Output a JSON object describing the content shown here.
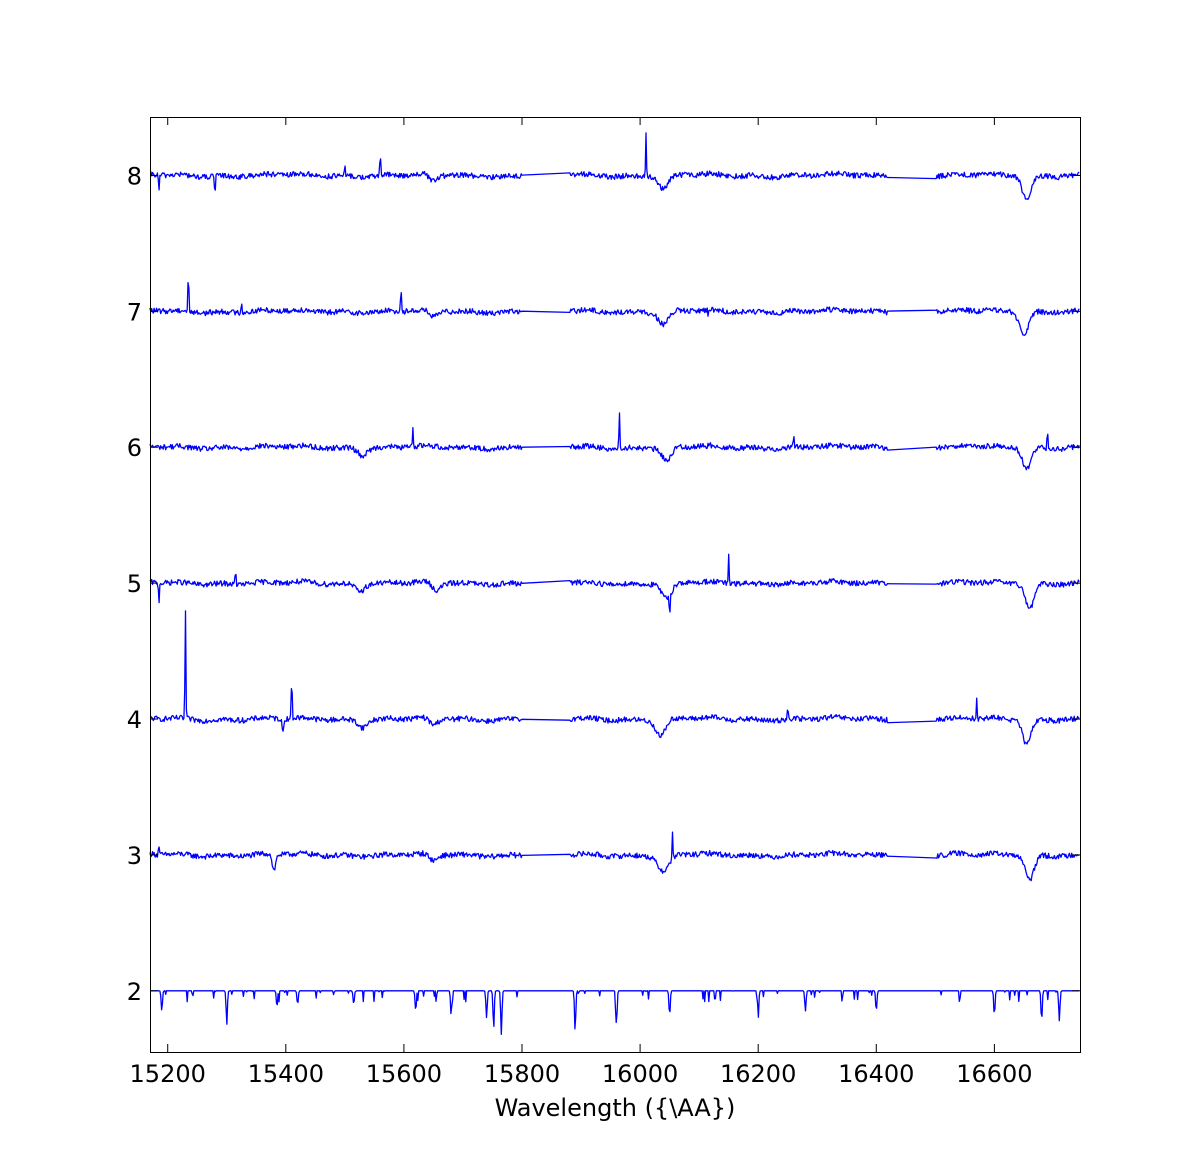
{
  "chart_data": {
    "type": "line",
    "title": "",
    "xlabel": "Wavelength ({\\AA})",
    "ylabel": "",
    "xlim": [
      15170,
      16745
    ],
    "ylim": [
      1.55,
      8.43
    ],
    "xticks": [
      15200,
      15400,
      15600,
      15800,
      16000,
      16200,
      16400,
      16600
    ],
    "yticks": [
      2,
      3,
      4,
      5,
      6,
      7,
      8
    ],
    "grid": false,
    "legend": "none",
    "line_color": "#0000ff",
    "gaps": [
      [
        15800,
        15880
      ],
      [
        16420,
        16500
      ]
    ],
    "series": [
      {
        "offset": 2,
        "features": [
          {
            "x": 15190,
            "depth": 0.15
          },
          {
            "x": 15300,
            "depth": 0.25
          },
          {
            "x": 15385,
            "depth": 0.12
          },
          {
            "x": 15420,
            "depth": 0.1
          },
          {
            "x": 15515,
            "depth": 0.1
          },
          {
            "x": 15620,
            "depth": 0.15
          },
          {
            "x": 15680,
            "depth": 0.18
          },
          {
            "x": 15740,
            "depth": 0.2
          },
          {
            "x": 15752,
            "depth": 0.28
          },
          {
            "x": 15765,
            "depth": 0.32
          },
          {
            "x": 15890,
            "depth": 0.3
          },
          {
            "x": 15960,
            "depth": 0.25
          },
          {
            "x": 16050,
            "depth": 0.18
          },
          {
            "x": 16200,
            "depth": 0.15
          },
          {
            "x": 16280,
            "depth": 0.15
          },
          {
            "x": 16400,
            "depth": 0.15
          },
          {
            "x": 16600,
            "depth": 0.18
          },
          {
            "x": 16680,
            "depth": 0.22
          },
          {
            "x": 16710,
            "depth": 0.22
          }
        ]
      },
      {
        "offset": 3,
        "features": [
          {
            "x": 15380,
            "depth": 0.12,
            "width": 4
          },
          {
            "x": 15650,
            "depth": 0.05,
            "width": 10
          },
          {
            "x": 16040,
            "depth": 0.12,
            "width": 14
          },
          {
            "x": 16055,
            "depth": -0.2,
            "width": 1
          },
          {
            "x": 16660,
            "depth": 0.18,
            "width": 10
          },
          {
            "x": 15185,
            "depth": -0.08,
            "width": 1
          }
        ]
      },
      {
        "offset": 4,
        "features": [
          {
            "x": 15230,
            "depth": -0.82,
            "width": 1
          },
          {
            "x": 15410,
            "depth": -0.32,
            "width": 1
          },
          {
            "x": 15395,
            "depth": 0.1,
            "width": 2
          },
          {
            "x": 15530,
            "depth": 0.05,
            "width": 10
          },
          {
            "x": 15650,
            "depth": 0.05,
            "width": 10
          },
          {
            "x": 16035,
            "depth": 0.12,
            "width": 12
          },
          {
            "x": 16250,
            "depth": -0.12,
            "width": 1
          },
          {
            "x": 16570,
            "depth": -0.14,
            "width": 1
          },
          {
            "x": 16655,
            "depth": 0.18,
            "width": 10
          }
        ]
      },
      {
        "offset": 5,
        "features": [
          {
            "x": 15185,
            "depth": 0.15,
            "width": 1
          },
          {
            "x": 15315,
            "depth": -0.1,
            "width": 1
          },
          {
            "x": 15525,
            "depth": 0.05,
            "width": 10
          },
          {
            "x": 15655,
            "depth": 0.06,
            "width": 10
          },
          {
            "x": 16045,
            "depth": 0.12,
            "width": 12
          },
          {
            "x": 16050,
            "depth": 0.15,
            "width": 1
          },
          {
            "x": 16150,
            "depth": -0.2,
            "width": 1
          },
          {
            "x": 16660,
            "depth": 0.18,
            "width": 10
          }
        ]
      },
      {
        "offset": 6,
        "features": [
          {
            "x": 15615,
            "depth": -0.15,
            "width": 1
          },
          {
            "x": 15965,
            "depth": -0.25,
            "width": 1
          },
          {
            "x": 15530,
            "depth": 0.05,
            "width": 10
          },
          {
            "x": 16045,
            "depth": 0.1,
            "width": 12
          },
          {
            "x": 16260,
            "depth": -0.1,
            "width": 1
          },
          {
            "x": 16655,
            "depth": 0.15,
            "width": 10
          },
          {
            "x": 16690,
            "depth": -0.14,
            "width": 1
          }
        ]
      },
      {
        "offset": 7,
        "features": [
          {
            "x": 15235,
            "depth": -0.3,
            "width": 1
          },
          {
            "x": 15595,
            "depth": -0.2,
            "width": 1
          },
          {
            "x": 15325,
            "depth": -0.08,
            "width": 1
          },
          {
            "x": 15650,
            "depth": 0.05,
            "width": 10
          },
          {
            "x": 16040,
            "depth": 0.1,
            "width": 12
          },
          {
            "x": 16115,
            "depth": 0.15,
            "width": 1
          },
          {
            "x": 16115,
            "depth": -0.1,
            "width": 1
          },
          {
            "x": 16650,
            "depth": 0.18,
            "width": 10
          }
        ]
      },
      {
        "offset": 8,
        "features": [
          {
            "x": 15185,
            "depth": 0.12,
            "width": 1
          },
          {
            "x": 15280,
            "depth": 0.15,
            "width": 1
          },
          {
            "x": 15560,
            "depth": -0.18,
            "width": 1
          },
          {
            "x": 15500,
            "depth": -0.06,
            "width": 1
          },
          {
            "x": 15650,
            "depth": 0.05,
            "width": 10
          },
          {
            "x": 16010,
            "depth": -0.32,
            "width": 1
          },
          {
            "x": 16040,
            "depth": 0.1,
            "width": 12
          },
          {
            "x": 16655,
            "depth": 0.18,
            "width": 10
          }
        ]
      }
    ]
  }
}
